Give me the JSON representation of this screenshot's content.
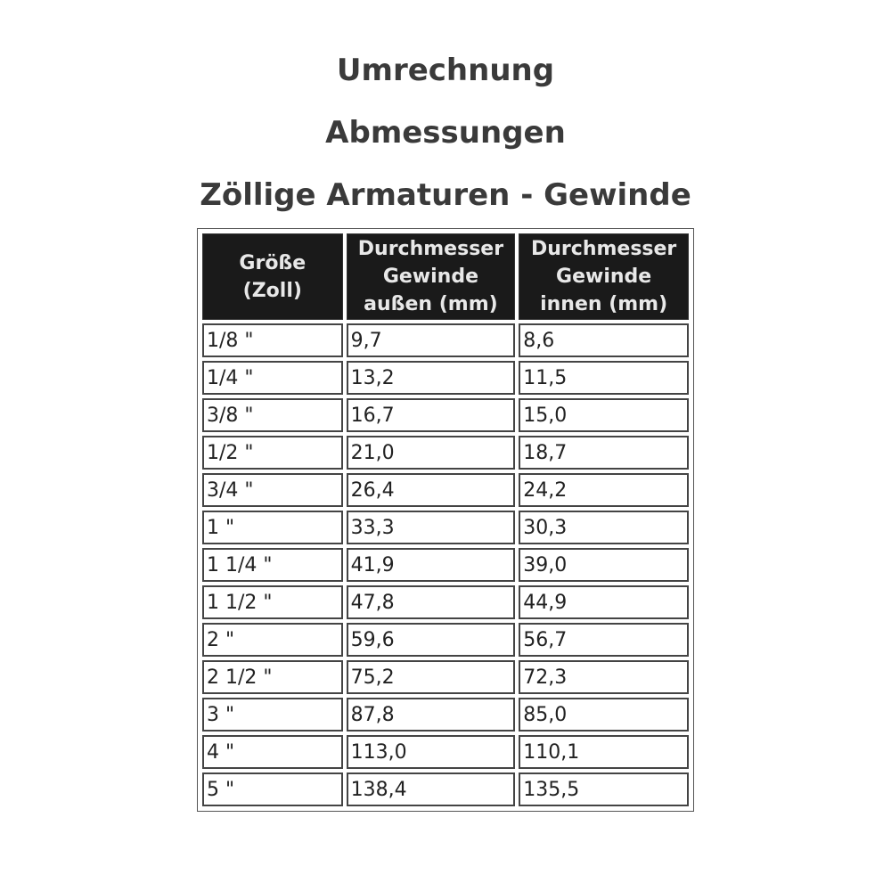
{
  "titles": [
    "Umrechnung",
    "Abmessungen",
    "Zöllige Armaturen - Gewinde"
  ],
  "table": {
    "headers": [
      [
        "Größe",
        "(Zoll)"
      ],
      [
        "Durchmesser",
        "Gewinde",
        "außen (mm)"
      ],
      [
        "Durchmesser",
        "Gewinde",
        "innen (mm)"
      ]
    ],
    "rows": [
      [
        "1/8 \"",
        "9,7",
        "8,6"
      ],
      [
        "1/4 \"",
        "13,2",
        "11,5"
      ],
      [
        "3/8 \"",
        "16,7",
        "15,0"
      ],
      [
        "1/2 \"",
        "21,0",
        "18,7"
      ],
      [
        "3/4 \"",
        "26,4",
        "24,2"
      ],
      [
        "1 \"",
        "33,3",
        "30,3"
      ],
      [
        "1 1/4 \"",
        "41,9",
        "39,0"
      ],
      [
        "1 1/2 \"",
        "47,8",
        "44,9"
      ],
      [
        "2 \"",
        "59,6",
        "56,7"
      ],
      [
        "2 1/2 \"",
        "75,2",
        "72,3"
      ],
      [
        "3 \"",
        "87,8",
        "85,0"
      ],
      [
        "4 \"",
        "113,0",
        "110,1"
      ],
      [
        "5 \"",
        "138,4",
        "135,5"
      ]
    ]
  }
}
